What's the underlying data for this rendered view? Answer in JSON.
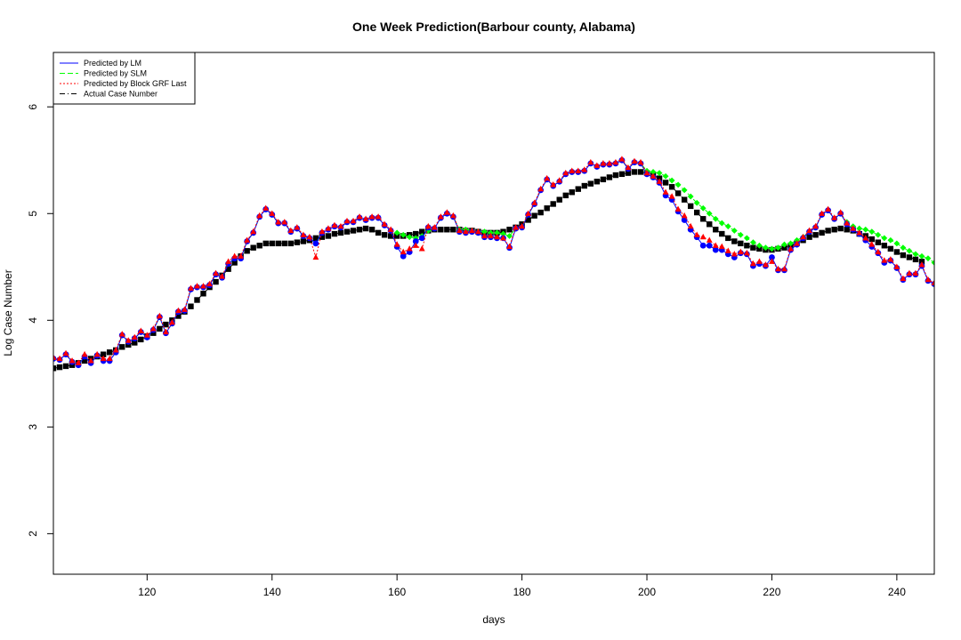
{
  "chart_data": {
    "type": "line",
    "title": "One Week Prediction(Barbour county, Alabama)",
    "xlabel": "days",
    "ylabel": "Log Case Number",
    "xlim": [
      105,
      246
    ],
    "ylim": [
      1.62,
      6.51
    ],
    "x_ticks": [
      120,
      140,
      160,
      180,
      200,
      220,
      240
    ],
    "y_ticks": [
      2,
      3,
      4,
      5,
      6
    ],
    "grid": false,
    "legend_position": "top-left",
    "series": [
      {
        "name": "Predicted by LM",
        "color": "#0000ff",
        "line_style": "solid",
        "marker": "circle",
        "x_start": 105,
        "values": [
          3.64,
          3.63,
          3.68,
          3.61,
          3.58,
          3.66,
          3.6,
          3.67,
          3.62,
          3.62,
          3.7,
          3.86,
          3.8,
          3.83,
          3.89,
          3.84,
          3.91,
          4.03,
          3.88,
          3.97,
          4.08,
          4.09,
          4.29,
          4.31,
          4.31,
          4.33,
          4.43,
          4.4,
          4.53,
          4.58,
          4.58,
          4.74,
          4.82,
          4.97,
          5.04,
          4.99,
          4.91,
          4.91,
          4.83,
          4.86,
          4.79,
          4.77,
          4.72,
          4.82,
          4.85,
          4.88,
          4.87,
          4.92,
          4.92,
          4.96,
          4.94,
          4.96,
          4.96,
          4.89,
          4.84,
          4.69,
          4.6,
          4.64,
          4.74,
          4.77,
          4.87,
          4.86,
          4.96,
          5.0,
          4.97,
          4.83,
          4.82,
          4.83,
          4.82,
          4.78,
          4.78,
          4.77,
          4.77,
          4.68,
          4.86,
          4.87,
          4.99,
          5.09,
          5.22,
          5.32,
          5.26,
          5.3,
          5.37,
          5.39,
          5.39,
          5.4,
          5.47,
          5.44,
          5.46,
          5.46,
          5.47,
          5.5,
          5.42,
          5.48,
          5.47,
          5.37,
          5.34,
          5.29,
          5.17,
          5.13,
          5.02,
          4.94,
          4.85,
          4.78,
          4.7,
          4.7,
          4.66,
          4.66,
          4.62,
          4.59,
          4.63,
          4.62,
          4.51,
          4.53,
          4.51,
          4.59,
          4.47,
          4.47,
          4.66,
          4.71,
          4.77,
          4.83,
          4.87,
          4.99,
          5.03,
          4.95,
          5.0,
          4.9,
          4.85,
          4.81,
          4.75,
          4.69,
          4.63,
          4.54,
          4.56,
          4.49,
          4.38,
          4.43,
          4.43,
          4.51,
          4.37,
          4.34
        ]
      },
      {
        "name": "Predicted by SLM",
        "color": "#00ff00",
        "line_style": "dashed",
        "marker": "diamond",
        "x_start": 105,
        "values": [
          3.64,
          3.63,
          3.68,
          3.61,
          3.58,
          3.66,
          3.6,
          3.67,
          3.62,
          3.62,
          3.7,
          3.86,
          3.8,
          3.83,
          3.89,
          3.84,
          3.91,
          4.03,
          3.88,
          3.97,
          4.08,
          4.09,
          4.29,
          4.31,
          4.31,
          4.33,
          4.43,
          4.4,
          4.53,
          4.58,
          4.58,
          4.74,
          4.82,
          4.97,
          5.04,
          4.99,
          4.91,
          4.91,
          4.83,
          4.86,
          4.79,
          4.77,
          4.72,
          4.82,
          4.85,
          4.88,
          4.87,
          4.92,
          4.92,
          4.96,
          4.94,
          4.96,
          4.96,
          4.89,
          4.84,
          4.82,
          4.8,
          4.78,
          4.77,
          4.79,
          4.84,
          4.86,
          4.96,
          5.0,
          4.97,
          4.85,
          4.85,
          4.84,
          4.83,
          4.83,
          4.82,
          4.82,
          4.81,
          4.79,
          4.86,
          4.87,
          4.99,
          5.09,
          5.22,
          5.32,
          5.26,
          5.3,
          5.37,
          5.39,
          5.39,
          5.4,
          5.47,
          5.44,
          5.46,
          5.46,
          5.47,
          5.5,
          5.42,
          5.48,
          5.47,
          5.4,
          5.39,
          5.38,
          5.35,
          5.31,
          5.27,
          5.22,
          5.16,
          5.1,
          5.05,
          5.0,
          4.95,
          4.91,
          4.88,
          4.84,
          4.8,
          4.77,
          4.73,
          4.7,
          4.68,
          4.67,
          4.68,
          4.71,
          4.72,
          4.75,
          4.78,
          4.83,
          4.87,
          4.99,
          5.03,
          4.95,
          5.0,
          4.92,
          4.88,
          4.86,
          4.85,
          4.83,
          4.8,
          4.77,
          4.75,
          4.72,
          4.68,
          4.65,
          4.62,
          4.6,
          4.58,
          4.54
        ]
      },
      {
        "name": "Predicted by Block GRF Last",
        "color": "#ff0000",
        "line_style": "dotted",
        "marker": "triangle",
        "x_start": 105,
        "values": [
          3.65,
          3.64,
          3.69,
          3.62,
          3.6,
          3.68,
          3.62,
          3.68,
          3.64,
          3.64,
          3.72,
          3.87,
          3.81,
          3.84,
          3.9,
          3.86,
          3.92,
          4.04,
          3.89,
          3.98,
          4.09,
          4.1,
          4.3,
          4.32,
          4.32,
          4.34,
          4.44,
          4.41,
          4.55,
          4.6,
          4.6,
          4.75,
          4.83,
          4.98,
          5.05,
          5.0,
          4.92,
          4.92,
          4.84,
          4.87,
          4.8,
          4.78,
          4.59,
          4.83,
          4.86,
          4.89,
          4.88,
          4.93,
          4.93,
          4.97,
          4.95,
          4.97,
          4.97,
          4.9,
          4.85,
          4.71,
          4.64,
          4.67,
          4.7,
          4.67,
          4.88,
          4.87,
          4.97,
          5.01,
          4.98,
          4.84,
          4.83,
          4.84,
          4.83,
          4.79,
          4.79,
          4.78,
          4.77,
          4.69,
          4.87,
          4.88,
          5.0,
          5.1,
          5.23,
          5.33,
          5.27,
          5.31,
          5.38,
          5.4,
          5.4,
          5.41,
          5.48,
          5.45,
          5.47,
          5.47,
          5.48,
          5.51,
          5.43,
          5.49,
          5.48,
          5.38,
          5.35,
          5.3,
          5.2,
          5.16,
          5.04,
          4.98,
          4.88,
          4.8,
          4.78,
          4.75,
          4.7,
          4.69,
          4.65,
          4.62,
          4.64,
          4.63,
          4.53,
          4.55,
          4.52,
          4.55,
          4.48,
          4.48,
          4.67,
          4.72,
          4.78,
          4.84,
          4.88,
          5.0,
          5.04,
          4.96,
          5.01,
          4.91,
          4.86,
          4.82,
          4.77,
          4.71,
          4.64,
          4.56,
          4.57,
          4.5,
          4.39,
          4.44,
          4.44,
          4.52,
          4.38,
          4.35
        ]
      },
      {
        "name": "Actual Case Number",
        "color": "#000000",
        "line_style": "dotdash",
        "marker": "square",
        "x_start": 105,
        "values": [
          3.55,
          3.56,
          3.57,
          3.58,
          3.6,
          3.62,
          3.64,
          3.66,
          3.68,
          3.7,
          3.72,
          3.75,
          3.77,
          3.79,
          3.82,
          3.85,
          3.88,
          3.92,
          3.96,
          4.0,
          4.04,
          4.08,
          4.13,
          4.19,
          4.25,
          4.31,
          4.36,
          4.42,
          4.48,
          4.54,
          4.6,
          4.65,
          4.68,
          4.7,
          4.72,
          4.72,
          4.72,
          4.72,
          4.72,
          4.73,
          4.74,
          4.75,
          4.77,
          4.78,
          4.79,
          4.81,
          4.82,
          4.83,
          4.84,
          4.85,
          4.86,
          4.85,
          4.82,
          4.8,
          4.79,
          4.79,
          4.79,
          4.8,
          4.81,
          4.83,
          4.84,
          4.85,
          4.85,
          4.85,
          4.85,
          4.85,
          4.84,
          4.84,
          4.83,
          4.82,
          4.82,
          4.82,
          4.83,
          4.85,
          4.87,
          4.9,
          4.94,
          4.98,
          5.01,
          5.05,
          5.09,
          5.13,
          5.17,
          5.2,
          5.23,
          5.26,
          5.28,
          5.3,
          5.32,
          5.34,
          5.36,
          5.37,
          5.38,
          5.39,
          5.39,
          5.38,
          5.36,
          5.33,
          5.29,
          5.25,
          5.19,
          5.13,
          5.07,
          5.01,
          4.95,
          4.9,
          4.85,
          4.81,
          4.77,
          4.74,
          4.72,
          4.7,
          4.68,
          4.67,
          4.66,
          4.66,
          4.67,
          4.68,
          4.7,
          4.72,
          4.75,
          4.78,
          4.8,
          4.82,
          4.84,
          4.85,
          4.86,
          4.85,
          4.84,
          4.81,
          4.79,
          4.76,
          4.73,
          4.7,
          4.67,
          4.64,
          4.61,
          4.59,
          4.57,
          4.55
        ]
      }
    ]
  }
}
